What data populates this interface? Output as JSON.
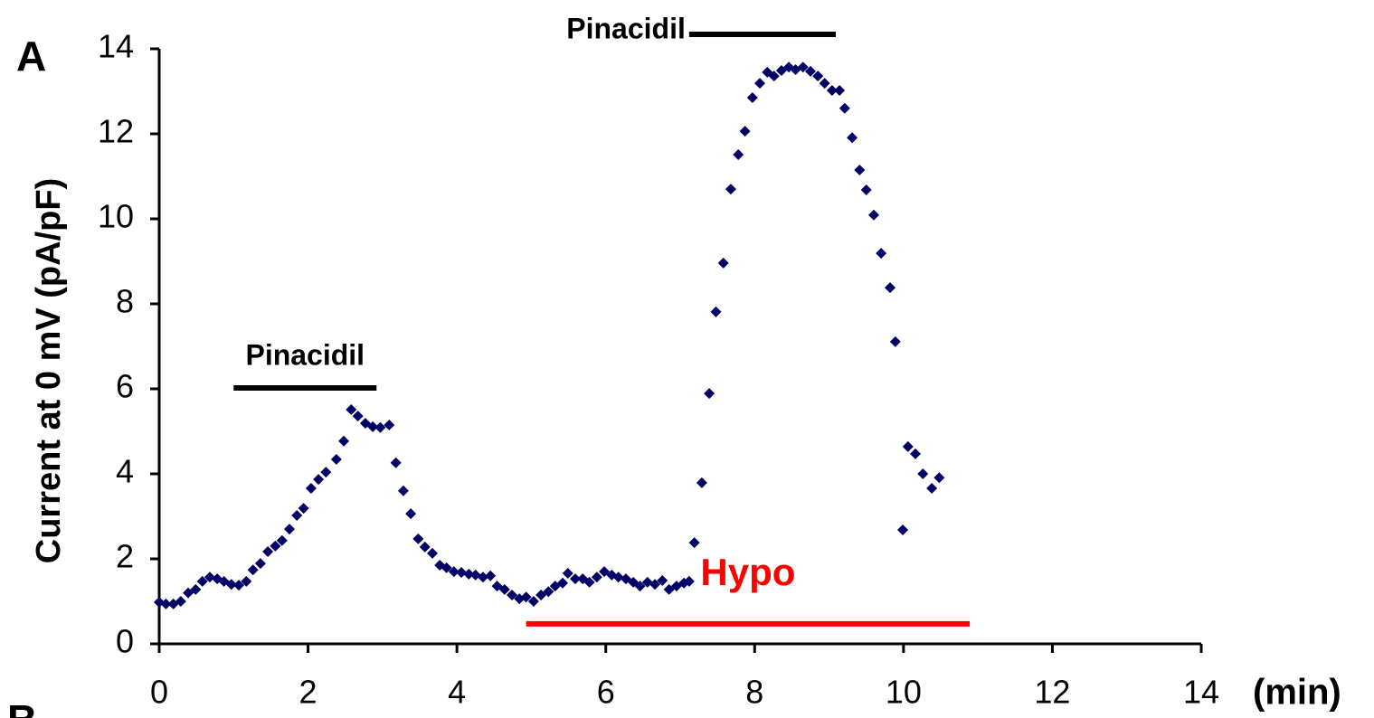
{
  "chart_data": {
    "type": "scatter",
    "panel_label": "A",
    "next_panel_label": "B",
    "x_label": "(min)",
    "y_label": "Current at 0 mV (pA/pF)",
    "color": "#000066",
    "x": [
      0,
      0.09,
      0.19,
      0.29,
      0.39,
      0.49,
      0.58,
      0.68,
      0.78,
      0.87,
      0.97,
      1.07,
      1.17,
      1.26,
      1.36,
      1.46,
      1.56,
      1.65,
      1.75,
      1.85,
      1.94,
      2.04,
      2.14,
      2.24,
      2.38,
      2.48,
      2.58,
      2.67,
      2.77,
      2.87,
      2.97,
      3.09,
      3.18,
      3.28,
      3.38,
      3.48,
      3.57,
      3.67,
      3.77,
      3.86,
      3.96,
      4.06,
      4.16,
      4.25,
      4.35,
      4.45,
      4.54,
      4.64,
      4.74,
      4.84,
      4.93,
      5.03,
      5.13,
      5.23,
      5.32,
      5.42,
      5.49,
      5.59,
      5.69,
      5.78,
      5.88,
      5.98,
      6.08,
      6.17,
      6.27,
      6.37,
      6.46,
      6.56,
      6.66,
      6.76,
      6.85,
      6.95,
      7.05,
      7.12,
      7.19,
      7.29,
      7.39,
      7.48,
      7.58,
      7.68,
      7.78,
      7.87,
      7.97,
      8.07,
      8.17,
      8.26,
      8.36,
      8.46,
      8.55,
      8.65,
      8.75,
      8.85,
      8.94,
      9.04,
      9.14,
      9.21,
      9.31,
      9.41,
      9.5,
      9.6,
      9.7,
      9.82,
      9.89,
      9.99,
      10.06,
      10.16,
      10.26,
      10.38,
      10.48
    ],
    "values": [
      0.98,
      0.94,
      0.94,
      1.0,
      1.2,
      1.28,
      1.47,
      1.57,
      1.53,
      1.47,
      1.4,
      1.38,
      1.47,
      1.74,
      1.89,
      2.17,
      2.3,
      2.43,
      2.7,
      3.02,
      3.19,
      3.66,
      3.87,
      4.04,
      4.34,
      4.77,
      5.51,
      5.36,
      5.19,
      5.11,
      5.09,
      5.15,
      4.26,
      3.6,
      3.06,
      2.47,
      2.28,
      2.13,
      1.85,
      1.79,
      1.7,
      1.68,
      1.64,
      1.62,
      1.57,
      1.6,
      1.36,
      1.28,
      1.15,
      1.06,
      1.1,
      1.0,
      1.15,
      1.23,
      1.36,
      1.43,
      1.66,
      1.53,
      1.53,
      1.45,
      1.57,
      1.7,
      1.62,
      1.57,
      1.53,
      1.45,
      1.36,
      1.45,
      1.4,
      1.49,
      1.28,
      1.36,
      1.43,
      1.47,
      2.38,
      3.79,
      5.89,
      7.81,
      8.96,
      10.7,
      11.51,
      12.06,
      12.85,
      13.19,
      13.45,
      13.36,
      13.49,
      13.57,
      13.51,
      13.57,
      13.47,
      13.36,
      13.19,
      13.02,
      13.02,
      12.6,
      11.91,
      11.15,
      10.68,
      10.09,
      9.19,
      8.38,
      7.11,
      2.68,
      4.64,
      4.47,
      4.0,
      3.66,
      3.91
    ],
    "xlim": [
      0,
      14
    ],
    "xticks": [
      0,
      2,
      4,
      6,
      8,
      10,
      12,
      14
    ],
    "ylim": [
      0,
      14
    ],
    "yticks": [
      0,
      2,
      4,
      6,
      8,
      10,
      12,
      14
    ],
    "annotations": [
      {
        "text": "Pinacidil",
        "start": 1.0,
        "end": 2.92,
        "y": 6.02,
        "color": "#000000",
        "label_side": "above"
      },
      {
        "text": "Pinacidil",
        "start": 7.12,
        "end": 9.09,
        "y": 14.34,
        "color": "#000000",
        "label_side": "left"
      },
      {
        "text": "Hypo",
        "start": 4.93,
        "end": 10.89,
        "y": 0.47,
        "color": "#ff0000",
        "label_side": "above"
      }
    ]
  }
}
